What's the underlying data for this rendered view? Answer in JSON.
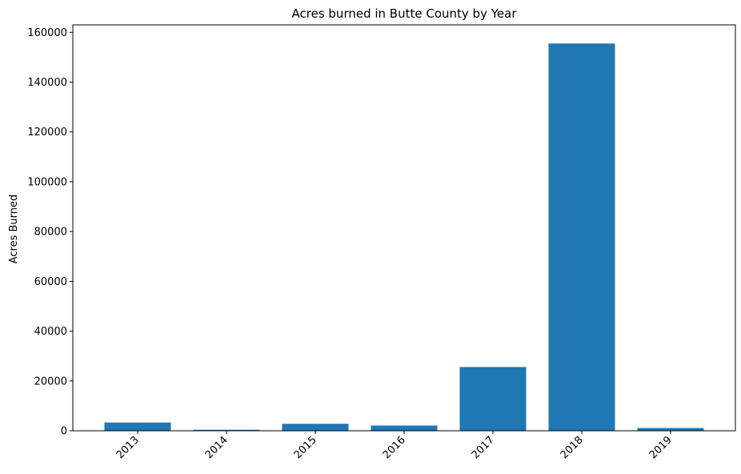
{
  "chart_data": {
    "type": "bar",
    "title": "Acres burned in Butte County by Year",
    "xlabel": "",
    "ylabel": "Acres Burned",
    "categories": [
      "2013",
      "2014",
      "2015",
      "2016",
      "2017",
      "2018",
      "2019"
    ],
    "values": [
      3300,
      400,
      2800,
      2100,
      25600,
      155500,
      1100
    ],
    "ylim": [
      0,
      163000
    ],
    "yticks": [
      0,
      20000,
      40000,
      60000,
      80000,
      100000,
      120000,
      140000,
      160000
    ],
    "ytick_labels": [
      "0",
      "20000",
      "40000",
      "60000",
      "80000",
      "100000",
      "120000",
      "140000",
      "160000"
    ],
    "bar_color": "#1f77b4",
    "grid": false,
    "legend": "none"
  }
}
